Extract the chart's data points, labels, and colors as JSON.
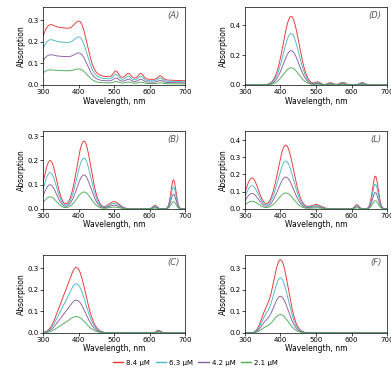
{
  "colors": [
    "#e63333",
    "#4ab8c8",
    "#8b5ea0",
    "#4daa57"
  ],
  "concentrations": [
    "8.4 μM",
    "6.3 μM",
    "4.2 μM",
    "2.1 μM"
  ],
  "panel_labels": [
    "(A)",
    "(D)",
    "(B)",
    "(L)",
    "(C)",
    "(F)"
  ],
  "xlabel": "Wavelength, nm",
  "ylabel": "Absorption",
  "xlim": [
    300,
    700
  ],
  "tick_fontsize": 5.0,
  "label_fontsize": 5.5,
  "panel_label_fontsize": 6.0,
  "scales": [
    1.0,
    0.75,
    0.5,
    0.25
  ],
  "ylims": [
    0.36,
    0.52,
    0.32,
    0.45,
    0.36,
    0.36
  ],
  "yticks": [
    [
      0,
      0.1,
      0.2,
      0.3
    ],
    [
      0,
      0.2,
      0.4
    ],
    [
      0,
      0.1,
      0.2,
      0.3
    ],
    [
      0,
      0.1,
      0.2,
      0.3,
      0.4
    ],
    [
      0,
      0.1,
      0.2,
      0.3
    ],
    [
      0,
      0.1,
      0.2,
      0.3
    ]
  ]
}
